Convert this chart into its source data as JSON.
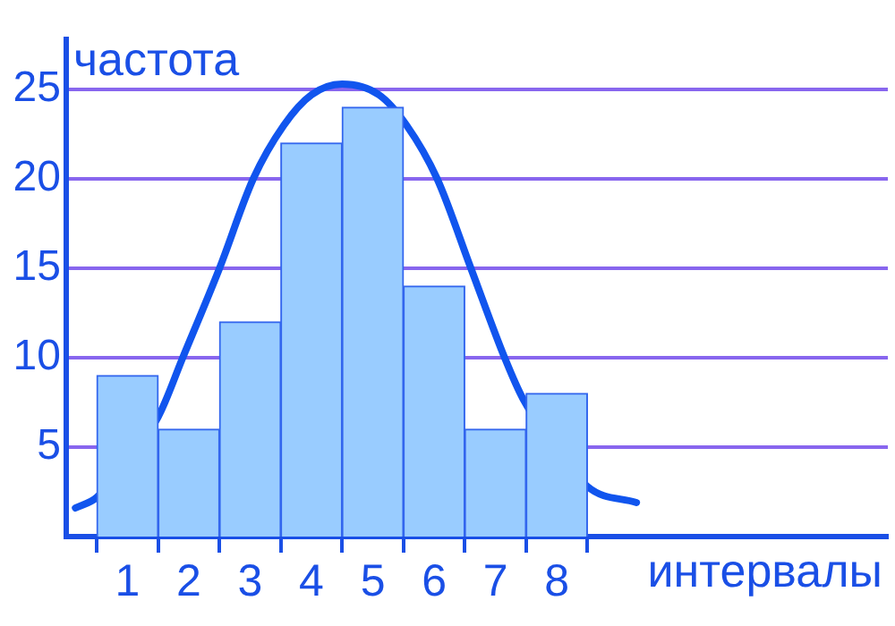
{
  "chart_data": {
    "type": "histogram",
    "xlabel": "интервалы",
    "ylabel": "частота",
    "bins": [
      0.5,
      1.5,
      2.5,
      3.5,
      4.5,
      5.5,
      6.5,
      7.5,
      8.5
    ],
    "values": [
      9,
      6,
      12,
      22,
      24,
      14,
      6,
      8
    ],
    "color": "#99ccff",
    "series": [
      {
        "type": "line",
        "color": "#1155ee",
        "x": [
          0.15,
          0.5,
          1.5,
          1.9,
          2.5,
          3.05,
          3.55,
          4.0,
          4.5,
          5.1,
          5.55,
          6.05,
          6.6,
          7.15,
          7.45,
          8.5,
          9.3
        ],
        "values": [
          1.6,
          2.2,
          6.7,
          10,
          15,
          20,
          23,
          24.7,
          25.3,
          24.7,
          23,
          20,
          15,
          10,
          7.7,
          2.8,
          1.9
        ]
      }
    ],
    "xlim": [
      0,
      13.4
    ],
    "xticks": [
      1,
      2,
      3,
      4,
      5,
      6,
      7,
      8
    ],
    "ylim": [
      0,
      27.8
    ],
    "yticks": [
      5,
      10,
      15,
      20,
      25
    ],
    "grid": "y",
    "legend": false,
    "marker": "none",
    "line_style": "solid"
  }
}
